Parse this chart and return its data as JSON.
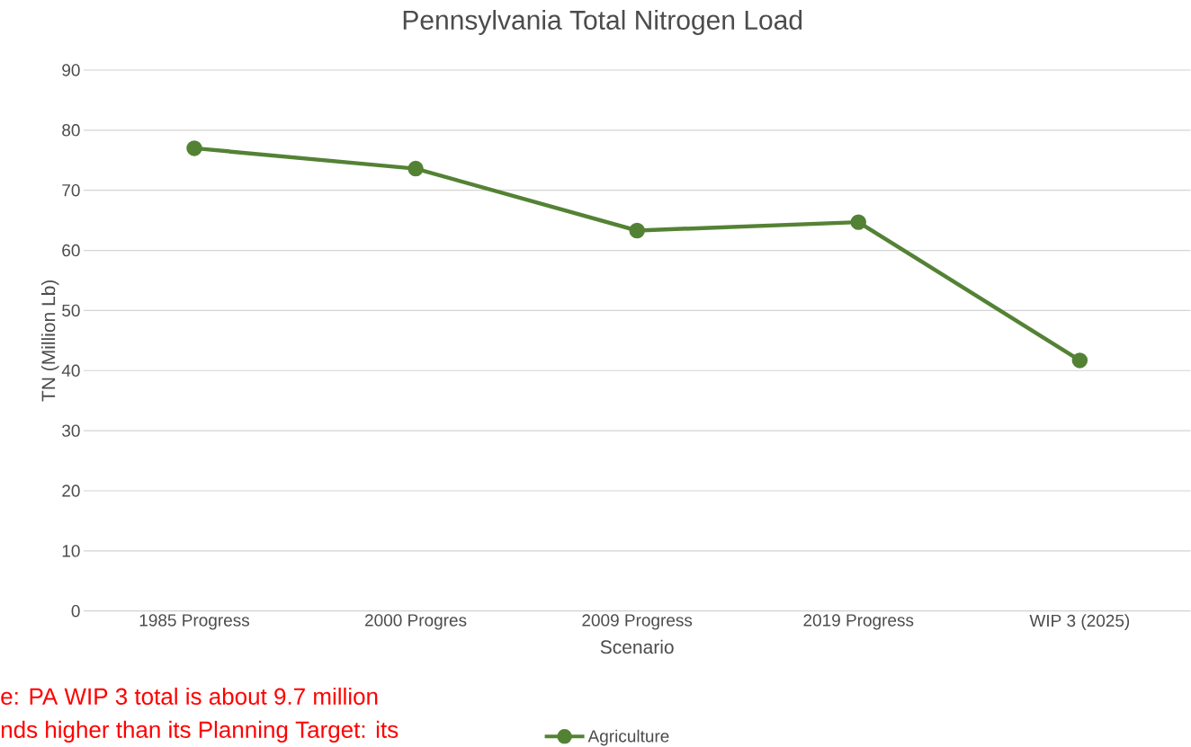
{
  "chart_data": {
    "type": "line",
    "title": "Pennsylvania Total Nitrogen Load",
    "xlabel": "Scenario",
    "ylabel": "TN  (Million Lb)",
    "categories": [
      "1985 Progress",
      "2000 Progres",
      "2009 Progress",
      "2019 Progress",
      "WIP 3 (2025)"
    ],
    "series": [
      {
        "name": "Agriculture",
        "color": "#548235",
        "values": [
          77,
          73.6,
          63.3,
          64.7,
          41.7
        ]
      }
    ],
    "ylim": [
      0,
      90
    ],
    "yticks": [
      0,
      10,
      20,
      30,
      40,
      50,
      60,
      70,
      80,
      90
    ],
    "grid": "y",
    "legend": "bottom",
    "marker": "circle",
    "line_style": "solid",
    "annotations": [
      "e: PA WIP 3 total is about 9.7 million",
      "nds higher than its Planning Target: its"
    ]
  }
}
